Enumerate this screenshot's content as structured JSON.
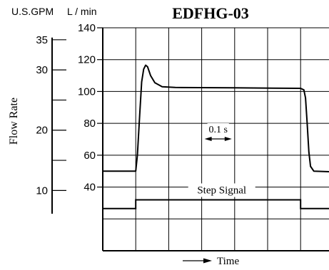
{
  "chart_data": {
    "type": "line",
    "title": "EDFHG-03",
    "ylabel": "Flow Rate",
    "xlabel": "Time",
    "units": {
      "usgpm": "U.S.GPM",
      "lmin": "L / min"
    },
    "x_units_note": "0.1 s per division",
    "xlim": [
      0,
      0.7
    ],
    "ylim_lmin": [
      0,
      140
    ],
    "lmin_ticks": [
      {
        "value": 40,
        "label": "40"
      },
      {
        "value": 60,
        "label": "60"
      },
      {
        "value": 80,
        "label": "80"
      },
      {
        "value": 100,
        "label": "100"
      },
      {
        "value": 120,
        "label": "120"
      },
      {
        "value": 140,
        "label": "140"
      }
    ],
    "gpm_ticks": [
      {
        "value": 10,
        "label": "10"
      },
      {
        "value": 20,
        "label": "20"
      },
      {
        "value": 30,
        "label": "30"
      },
      {
        "value": 35,
        "label": "35"
      }
    ],
    "gpm_minor_ticks": [
      15,
      25
    ],
    "gridlines_lmin": [
      20,
      40,
      60,
      80,
      100,
      120,
      140
    ],
    "gridlines_x": [
      0.1,
      0.2,
      0.3,
      0.4,
      0.5,
      0.6
    ],
    "grid": true,
    "annotation": {
      "label": "0.1 s",
      "span": [
        0.3,
        0.4
      ]
    },
    "series": [
      {
        "points": [
          [
            0.0,
            50
          ],
          [
            0.1,
            50
          ],
          [
            0.105,
            60
          ],
          [
            0.112,
            85
          ],
          [
            0.118,
            106
          ],
          [
            0.124,
            114
          ],
          [
            0.13,
            116.5
          ],
          [
            0.136,
            115.5
          ],
          [
            0.145,
            110
          ],
          [
            0.158,
            105.5
          ],
          [
            0.18,
            103
          ],
          [
            0.22,
            102.5
          ],
          [
            0.4,
            102.3
          ],
          [
            0.6,
            102
          ],
          [
            0.61,
            101
          ],
          [
            0.615,
            96
          ],
          [
            0.62,
            80
          ],
          [
            0.625,
            62
          ],
          [
            0.63,
            53
          ],
          [
            0.64,
            50
          ],
          [
            0.7,
            49.5
          ]
        ]
      }
    ],
    "step_signal": {
      "label": "Step Signal",
      "low": 26.5,
      "high": 32,
      "rise_x": 0.1,
      "fall_x": 0.6
    }
  }
}
